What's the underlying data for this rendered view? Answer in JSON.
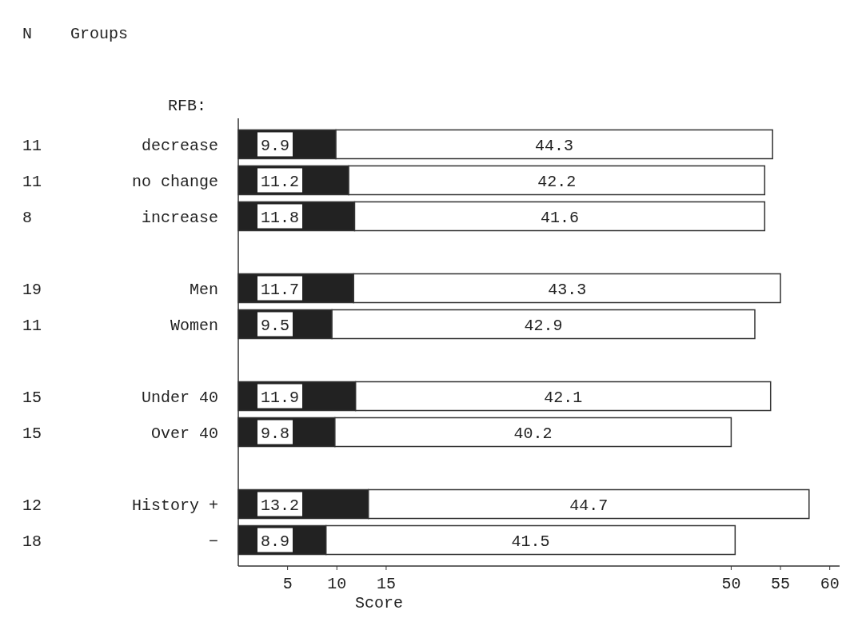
{
  "chart_data": {
    "type": "bar",
    "orientation": "horizontal",
    "stacked": true,
    "xlabel": "Score",
    "categories": [
      "decrease",
      "no change",
      "increase",
      null,
      "Men",
      "Women",
      null,
      "Under 40",
      "Over 40",
      null,
      "History +",
      "−"
    ],
    "series": [
      {
        "color": "#222222",
        "values": [
          9.9,
          11.2,
          11.8,
          null,
          11.7,
          9.5,
          null,
          11.9,
          9.8,
          null,
          13.2,
          8.9
        ]
      },
      {
        "color": "#ffffff",
        "values": [
          44.3,
          42.2,
          41.6,
          null,
          43.3,
          42.9,
          null,
          42.1,
          40.2,
          null,
          44.7,
          41.5
        ]
      }
    ],
    "xlim": [
      0,
      61
    ],
    "xticks": [
      5,
      10,
      15,
      50,
      55,
      60
    ],
    "data_labels": true,
    "grid": false,
    "annotations": [
      "N",
      "Groups",
      "RFB:",
      "11",
      "11",
      "8",
      "19",
      "11",
      "15",
      "15",
      "12",
      "18"
    ]
  }
}
